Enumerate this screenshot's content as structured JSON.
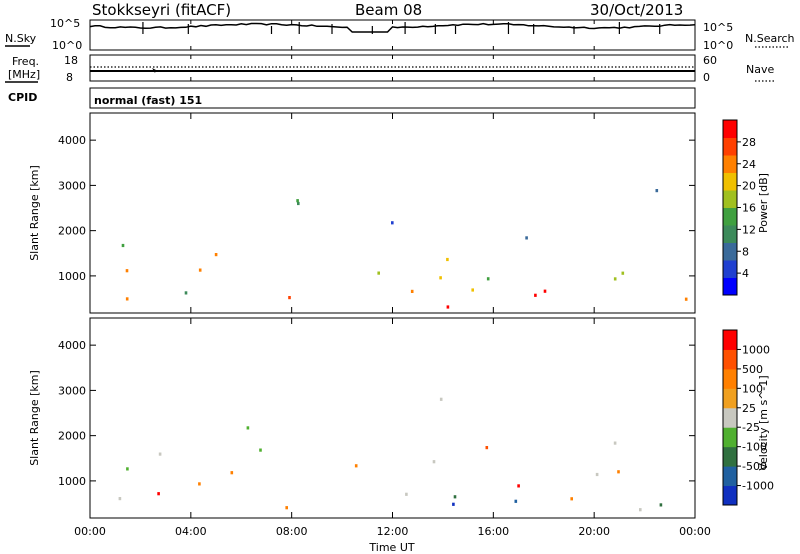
{
  "header": {
    "station": "Stokkseyri (fitACF)",
    "beam": "Beam 08",
    "date": "30/Oct/2013"
  },
  "noise_panel": {
    "left_label": "N.Sky",
    "right_label": "N.Search",
    "left_ticks": [
      "10^5",
      "10^0"
    ],
    "right_ticks": [
      "10^5",
      "10^0"
    ]
  },
  "freq_panel": {
    "left_label_1": "Freq.",
    "left_label_2": "[MHz]",
    "left_ticks": [
      "18",
      "8"
    ],
    "right_label": "Nave",
    "right_ticks": [
      "60",
      "0"
    ]
  },
  "cpid": {
    "label": "CPID",
    "mode_text": "normal (fast) 151"
  },
  "chart_data": [
    {
      "type": "heatmap",
      "ylabel": "Slant Range [km]",
      "y_ticks": [
        "1000",
        "2000",
        "3000",
        "4000"
      ],
      "ylim": [
        180,
        4600
      ],
      "colorbar": {
        "label": "Power [dB]",
        "ticks": [
          "28",
          "24",
          "20",
          "16",
          "12",
          "8",
          "4"
        ],
        "colors": [
          "#0000ff",
          "#2040d0",
          "#3a6a9a",
          "#3c8a5a",
          "#40a040",
          "#a0c020",
          "#f0c000",
          "#ff8000",
          "#ff4000",
          "#ff0000"
        ]
      }
    },
    {
      "type": "heatmap",
      "ylabel": "Slant Range [km]",
      "y_ticks": [
        "1000",
        "2000",
        "3000",
        "4000"
      ],
      "ylim": [
        180,
        4600
      ],
      "colorbar": {
        "label": "Velocity [m s^-1]",
        "ticks": [
          "1000",
          "500",
          "100",
          "25",
          "-25",
          "-100",
          "-500",
          "-1000"
        ],
        "colors": [
          "#1030c0",
          "#2060a0",
          "#307040",
          "#50b030",
          "#c8c8c0",
          "#f0a020",
          "#ff8000",
          "#ff5000",
          "#ff0000"
        ]
      }
    }
  ],
  "time_axis": {
    "label": "Time UT",
    "ticks": [
      "00:00",
      "04:00",
      "08:00",
      "12:00",
      "16:00",
      "20:00",
      "00:00"
    ]
  }
}
